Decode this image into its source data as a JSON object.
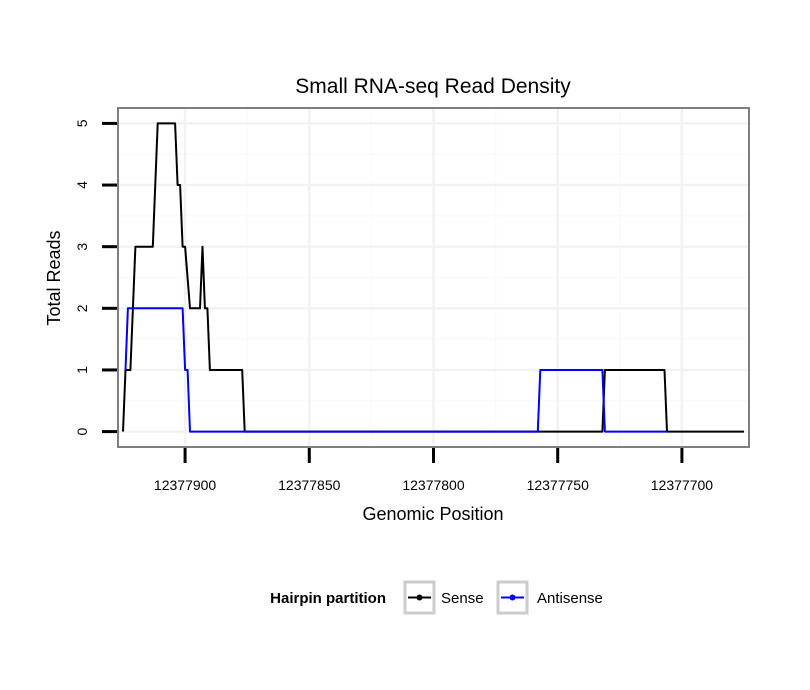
{
  "chart_data": {
    "type": "line",
    "title": "Small RNA-seq Read Density",
    "xlabel": "Genomic Position",
    "ylabel": "Total Reads",
    "x_reversed": true,
    "xlim": [
      12377927,
      12377673
    ],
    "ylim": [
      -0.25,
      5.25
    ],
    "x_ticks": [
      12377900,
      12377850,
      12377800,
      12377750,
      12377700
    ],
    "x_tick_labels": [
      "12377900",
      "12377850",
      "12377800",
      "12377750",
      "12377700"
    ],
    "y_ticks": [
      0,
      1,
      2,
      3,
      4,
      5
    ],
    "y_tick_labels": [
      "0",
      "1",
      "2",
      "3",
      "4",
      "5"
    ],
    "grid": true,
    "legend": {
      "title": "Hairpin partition",
      "position": "bottom",
      "entries": [
        "Sense",
        "Antisense"
      ]
    },
    "series": [
      {
        "name": "Sense",
        "color": "#000000",
        "points": [
          [
            12377925,
            0
          ],
          [
            12377924,
            1
          ],
          [
            12377922,
            1
          ],
          [
            12377920,
            3
          ],
          [
            12377913,
            3
          ],
          [
            12377911,
            5
          ],
          [
            12377904,
            5
          ],
          [
            12377903,
            4
          ],
          [
            12377902,
            4
          ],
          [
            12377901,
            3
          ],
          [
            12377900,
            3
          ],
          [
            12377898,
            2
          ],
          [
            12377894,
            2
          ],
          [
            12377893,
            3
          ],
          [
            12377892,
            2
          ],
          [
            12377891,
            2
          ],
          [
            12377890,
            1
          ],
          [
            12377877,
            1
          ],
          [
            12377876,
            0
          ],
          [
            12377800,
            0
          ],
          [
            12377760,
            0
          ],
          [
            12377732,
            0
          ],
          [
            12377731,
            1
          ],
          [
            12377707,
            1
          ],
          [
            12377706,
            0
          ],
          [
            12377675,
            0
          ]
        ]
      },
      {
        "name": "Antisense",
        "color": "#0000ff",
        "points": [
          [
            12377924,
            1
          ],
          [
            12377923,
            2
          ],
          [
            12377901,
            2
          ],
          [
            12377900,
            1
          ],
          [
            12377899,
            1
          ],
          [
            12377898,
            0
          ],
          [
            12377876,
            0
          ],
          [
            12377758,
            0
          ],
          [
            12377757,
            1
          ],
          [
            12377732,
            1
          ],
          [
            12377731,
            0
          ],
          [
            12377706,
            0
          ]
        ]
      }
    ]
  }
}
